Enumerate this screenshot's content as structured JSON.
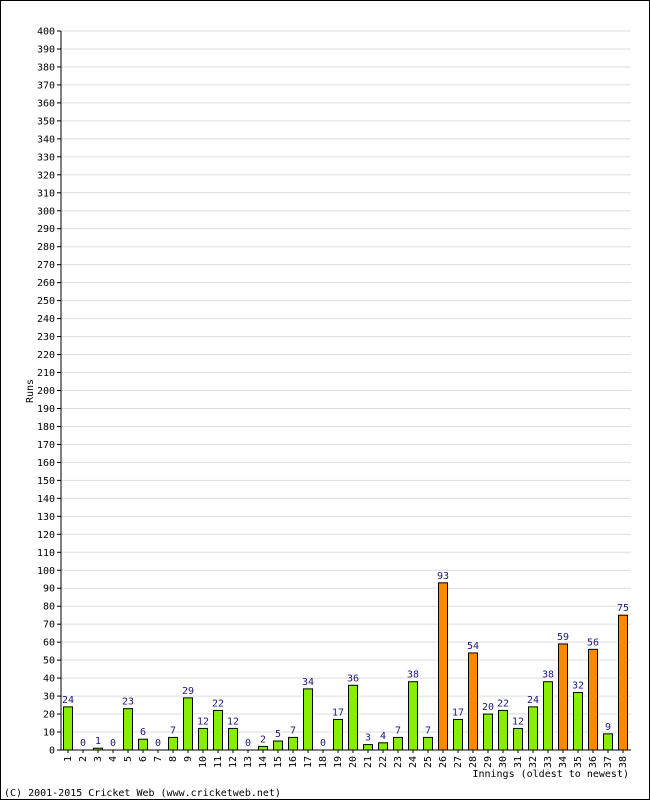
{
  "chart_data": {
    "type": "bar",
    "ylabel": "Runs",
    "xlabel": "Innings (oldest to newest)",
    "ylim": [
      0,
      400
    ],
    "ytick_step": 10,
    "grid": true,
    "categories": [
      "1",
      "2",
      "3",
      "4",
      "5",
      "6",
      "7",
      "8",
      "9",
      "10",
      "11",
      "12",
      "13",
      "14",
      "15",
      "16",
      "17",
      "18",
      "19",
      "20",
      "21",
      "22",
      "23",
      "24",
      "25",
      "26",
      "27",
      "28",
      "29",
      "30",
      "31",
      "32",
      "33",
      "34",
      "35",
      "36",
      "37",
      "38"
    ],
    "values": [
      24,
      0,
      1,
      0,
      23,
      6,
      0,
      7,
      29,
      12,
      22,
      12,
      0,
      2,
      5,
      7,
      34,
      0,
      17,
      36,
      3,
      4,
      7,
      38,
      7,
      93,
      17,
      54,
      20,
      22,
      12,
      24,
      38,
      59,
      32,
      56,
      9,
      75
    ],
    "bar_colors": [
      "g",
      "g",
      "g",
      "g",
      "g",
      "g",
      "g",
      "g",
      "g",
      "g",
      "g",
      "g",
      "g",
      "g",
      "g",
      "g",
      "g",
      "g",
      "g",
      "g",
      "g",
      "g",
      "g",
      "g",
      "g",
      "o",
      "g",
      "o",
      "g",
      "g",
      "g",
      "g",
      "g",
      "o",
      "g",
      "o",
      "g",
      "o"
    ],
    "colors": {
      "g": "#88ee00",
      "o": "#ff8800",
      "border": "#000000",
      "grid": "#dddddd",
      "value_text": "#1a1a7a"
    }
  },
  "footer": "(C) 2001-2015 Cricket Web (www.cricketweb.net)"
}
